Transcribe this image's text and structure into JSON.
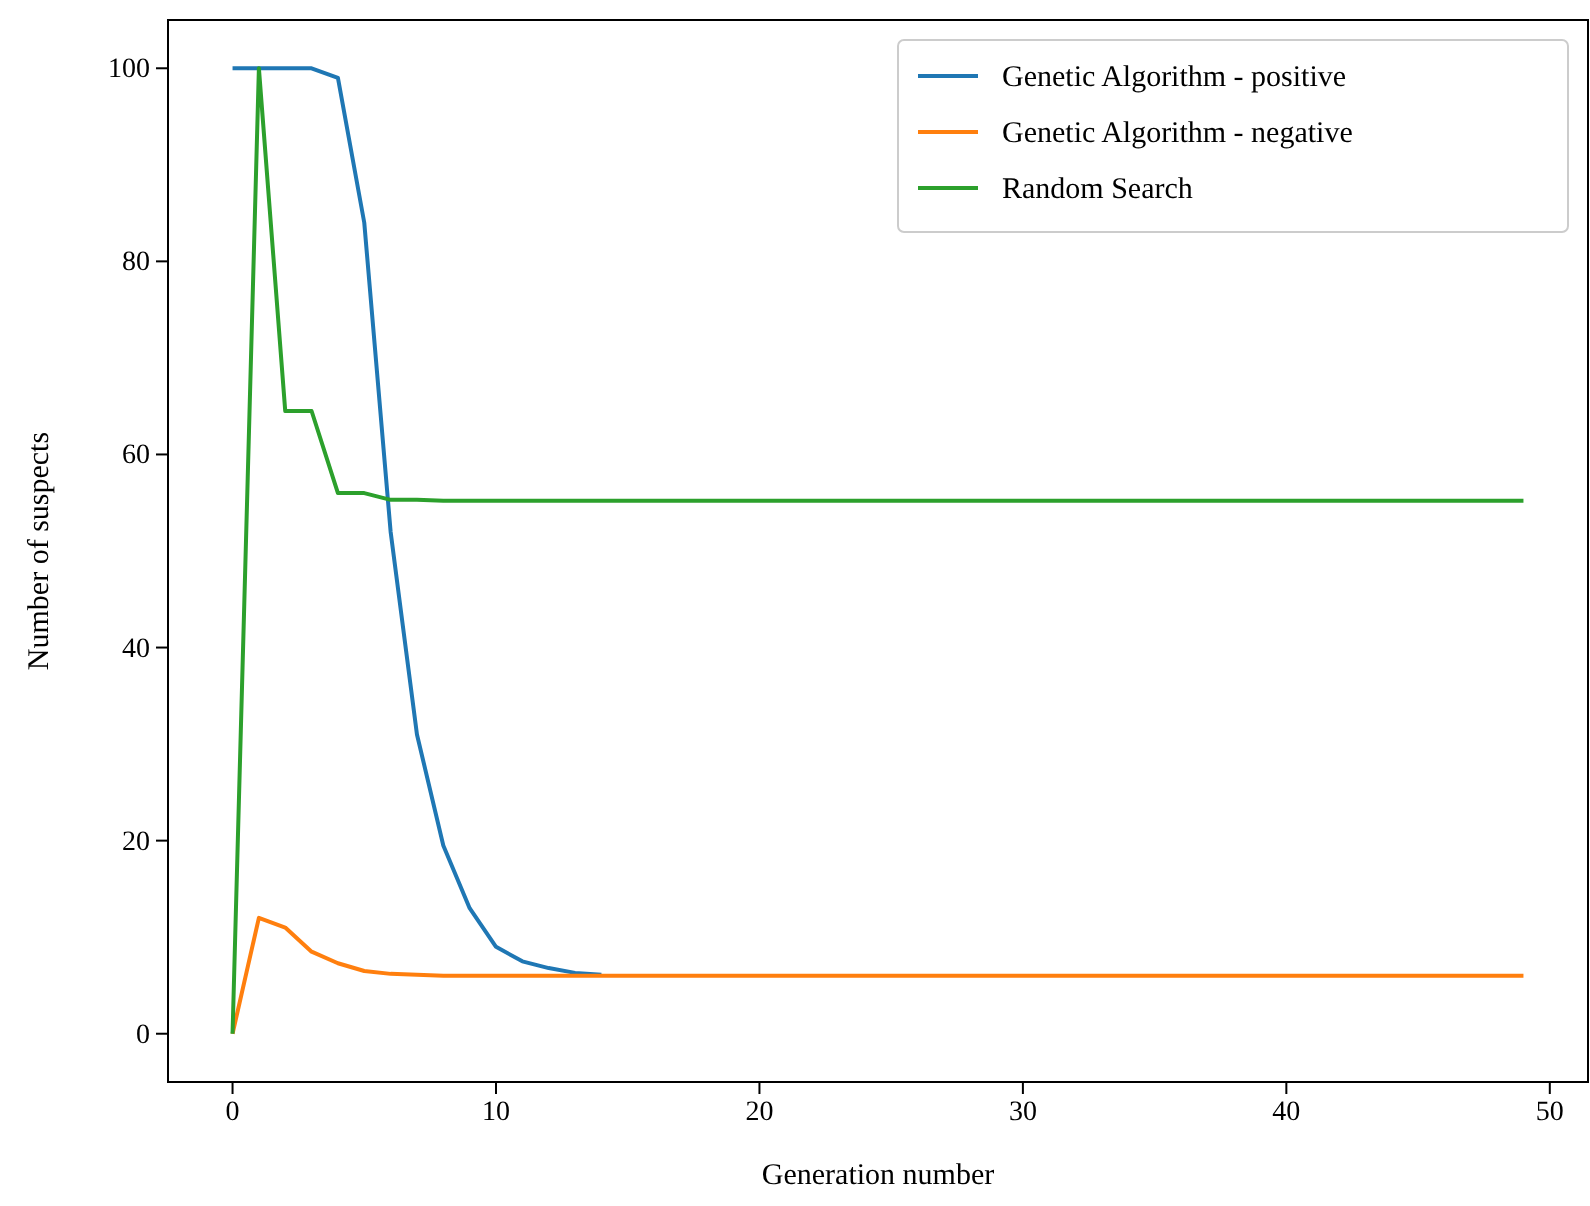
{
  "chart_data": {
    "type": "line",
    "xlabel": "Generation number",
    "ylabel": "Number of suspects",
    "x": [
      0,
      1,
      2,
      3,
      4,
      5,
      6,
      7,
      8,
      9,
      10,
      11,
      12,
      13,
      14,
      15,
      16,
      17,
      18,
      19,
      20,
      21,
      22,
      23,
      24,
      25,
      26,
      27,
      28,
      29,
      30,
      31,
      32,
      33,
      34,
      35,
      36,
      37,
      38,
      39,
      40,
      41,
      42,
      43,
      44,
      45,
      46,
      47,
      48,
      49
    ],
    "series": [
      {
        "name": "Genetic Algorithm - positive",
        "color": "#1f77b4",
        "values": [
          100,
          100,
          100,
          100,
          99,
          84,
          52,
          31,
          19.5,
          13,
          9,
          7.5,
          6.8,
          6.3,
          6.1,
          null,
          null,
          null,
          null,
          null,
          null,
          null,
          null,
          null,
          null,
          null,
          null,
          null,
          null,
          null,
          null,
          null,
          null,
          null,
          null,
          null,
          null,
          null,
          null,
          null,
          null,
          null,
          null,
          null,
          null,
          null,
          null,
          null,
          null,
          null
        ]
      },
      {
        "name": "Genetic Algorithm - negative",
        "color": "#ff7f0e",
        "values": [
          0,
          12,
          11,
          8.5,
          7.3,
          6.5,
          6.2,
          6.1,
          6,
          6,
          6,
          6,
          6,
          6,
          6,
          6,
          6,
          6,
          6,
          6,
          6,
          6,
          6,
          6,
          6,
          6,
          6,
          6,
          6,
          6,
          6,
          6,
          6,
          6,
          6,
          6,
          6,
          6,
          6,
          6,
          6,
          6,
          6,
          6,
          6,
          6,
          6,
          6,
          6,
          6
        ]
      },
      {
        "name": "Random Search",
        "color": "#2ca02c",
        "values": [
          0,
          100,
          64.5,
          64.5,
          56,
          56,
          55.3,
          55.3,
          55.2,
          55.2,
          55.2,
          55.2,
          55.2,
          55.2,
          55.2,
          55.2,
          55.2,
          55.2,
          55.2,
          55.2,
          55.2,
          55.2,
          55.2,
          55.2,
          55.2,
          55.2,
          55.2,
          55.2,
          55.2,
          55.2,
          55.2,
          55.2,
          55.2,
          55.2,
          55.2,
          55.2,
          55.2,
          55.2,
          55.2,
          55.2,
          55.2,
          55.2,
          55.2,
          55.2,
          55.2,
          55.2,
          55.2,
          55.2,
          55.2,
          55.2
        ]
      }
    ],
    "xlim": [
      -2.45,
      51.45
    ],
    "ylim": [
      -5,
      105
    ],
    "xticks": [
      0,
      10,
      20,
      30,
      40,
      50
    ],
    "yticks": [
      0,
      20,
      40,
      60,
      80,
      100
    ],
    "legend": "top right",
    "grid": false,
    "marker": "none",
    "line_style": "solid"
  }
}
